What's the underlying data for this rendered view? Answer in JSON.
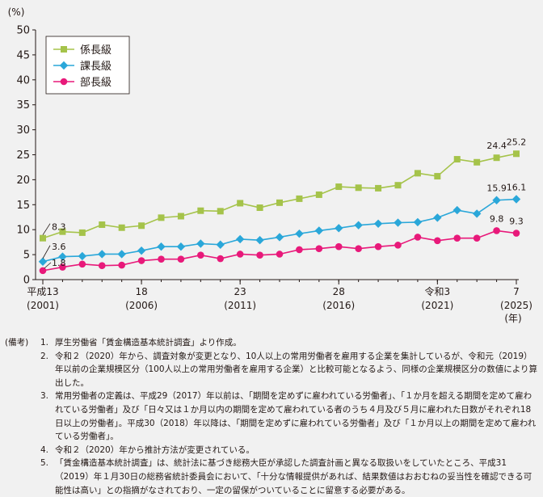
{
  "chart_data": {
    "type": "line",
    "y_unit": "(%)",
    "ylim": [
      0,
      50
    ],
    "y_ticks": [
      "0",
      "5",
      "10",
      "15",
      "20",
      "25",
      "30",
      "35",
      "40",
      "45",
      "50"
    ],
    "x": [
      2001,
      2002,
      2003,
      2004,
      2005,
      2006,
      2007,
      2008,
      2009,
      2010,
      2011,
      2012,
      2013,
      2014,
      2015,
      2016,
      2017,
      2018,
      2019,
      2020,
      2021,
      2022,
      2023,
      2024,
      2025
    ],
    "x_ticks": [
      {
        "x": 2001,
        "label1": "平成13",
        "label2": "(2001)"
      },
      {
        "x": 2006,
        "label1": "18",
        "label2": "(2006)"
      },
      {
        "x": 2011,
        "label1": "23",
        "label2": "(2011)"
      },
      {
        "x": 2016,
        "label1": "28",
        "label2": "(2016)"
      },
      {
        "x": 2021,
        "label1": "令和3",
        "label2": "(2021)"
      },
      {
        "x": 2025,
        "label1": "7",
        "label2": "(2025)"
      }
    ],
    "x_unit": "(年)",
    "series": [
      {
        "name": "係長級",
        "color": "#a5c34a",
        "marker": "square",
        "values": [
          8.3,
          9.6,
          9.4,
          11.0,
          10.4,
          10.8,
          12.4,
          12.7,
          13.8,
          13.7,
          15.3,
          14.4,
          15.4,
          16.2,
          17.0,
          18.6,
          18.4,
          18.3,
          18.9,
          21.3,
          20.7,
          24.1,
          23.5,
          24.4,
          25.2
        ]
      },
      {
        "name": "課長級",
        "color": "#2aa7d9",
        "marker": "diamond",
        "values": [
          3.6,
          4.6,
          4.7,
          5.1,
          5.1,
          5.8,
          6.6,
          6.6,
          7.2,
          7.0,
          8.1,
          7.9,
          8.5,
          9.2,
          9.8,
          10.3,
          10.9,
          11.2,
          11.4,
          11.5,
          12.4,
          13.9,
          13.2,
          15.9,
          16.1
        ]
      },
      {
        "name": "部長級",
        "color": "#e8197a",
        "marker": "circle",
        "values": [
          1.8,
          2.5,
          3.1,
          2.8,
          2.9,
          3.8,
          4.1,
          4.1,
          4.9,
          4.2,
          5.1,
          4.9,
          5.1,
          6.0,
          6.2,
          6.6,
          6.2,
          6.6,
          6.9,
          8.5,
          7.8,
          8.3,
          8.3,
          9.8,
          9.3
        ]
      }
    ],
    "data_labels": [
      {
        "series": 0,
        "x": 2001,
        "text": "8.3"
      },
      {
        "series": 0,
        "x": 2024,
        "text": "24.4"
      },
      {
        "series": 0,
        "x": 2025,
        "text": "25.2"
      },
      {
        "series": 1,
        "x": 2001,
        "text": "3.6"
      },
      {
        "series": 1,
        "x": 2024,
        "text": "15.9"
      },
      {
        "series": 1,
        "x": 2025,
        "text": "16.1"
      },
      {
        "series": 2,
        "x": 2001,
        "text": "1.8"
      },
      {
        "series": 2,
        "x": 2024,
        "text": "9.8"
      },
      {
        "series": 2,
        "x": 2025,
        "text": "9.3"
      }
    ],
    "legend_position": "top-left",
    "grid": false
  },
  "notes": {
    "header": "(備考)",
    "items": [
      {
        "num": "1.",
        "text": "厚生労働省「賃金構造基本統計調査」より作成。"
      },
      {
        "num": "2.",
        "text": "令和２（2020）年から、調査対象が変更となり、10人以上の常用労働者を雇用する企業を集計しているが、令和元（2019）年以前の企業規模区分（100人以上の常用労働者を雇用する企業）と比較可能となるよう、同様の企業規模区分の数値により算出した。"
      },
      {
        "num": "3.",
        "text": "常用労働者の定義は、平成29（2017）年以前は、「期間を定めずに雇われている労働者」、「１か月を超える期間を定めて雇われている労働者」及び「日々又は１か月以内の期間を定めて雇われている者のうち４月及び５月に雇われた日数がそれぞれ18日以上の労働者」。平成30（2018）年以降は、「期間を定めずに雇われている労働者」及び「１か月以上の期間を定めて雇われている労働者」。"
      },
      {
        "num": "4.",
        "text": "令和２（2020）年から推計方法が変更されている。"
      },
      {
        "num": "5.",
        "text": "「賃金構造基本統計調査」は、統計法に基づき総務大臣が承認した調査計画と異なる取扱いをしていたところ、平成31（2019）年１月30日の総務省統計委員会において、「十分な情報提供があれば、結果数値はおおむねの妥当性を確認できる可能性は高い」との指摘がなされており、一定の留保がついていることに留意する必要がある。"
      }
    ]
  }
}
